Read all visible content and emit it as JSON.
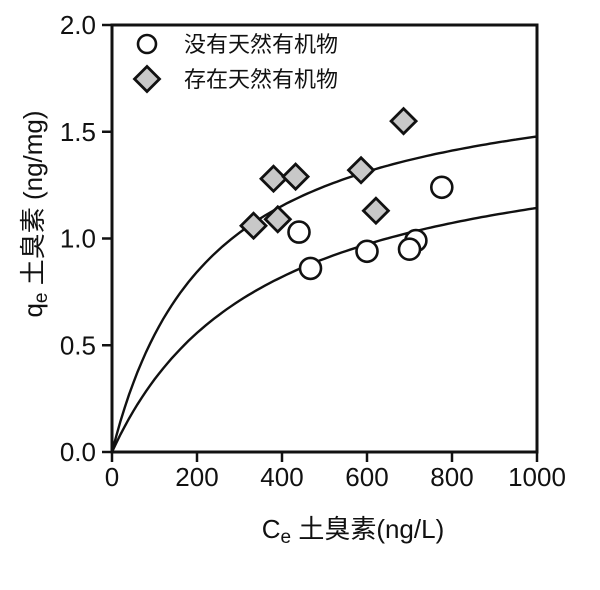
{
  "colors": {
    "line": "#111111",
    "text": "#111111",
    "circle_fill": "#ffffff",
    "diamond_fill": "#c8c8c8",
    "background": "#ffffff"
  },
  "chart_data": {
    "type": "scatter",
    "title": "",
    "xlabel_main": "C",
    "xlabel_sub": "e",
    "xlabel_rest": " 土臭素(ng/L)",
    "ylabel_main": "q",
    "ylabel_sub": "e",
    "ylabel_rest": " 土臭素 (ng/mg)",
    "xlim": [
      0,
      1000
    ],
    "ylim": [
      0,
      2.0
    ],
    "x_ticks": [
      0,
      200,
      400,
      600,
      800,
      1000
    ],
    "x_tick_labels": [
      "0",
      "200",
      "400",
      "600",
      "800",
      "1000"
    ],
    "y_ticks": [
      0,
      0.5,
      1.0,
      1.5,
      2.0
    ],
    "y_tick_labels": [
      "0.0",
      "0.5",
      "1.0",
      "1.5",
      "2.0"
    ],
    "grid": false,
    "legend_position": "top-left",
    "series": [
      {
        "name": "没有天然有机物",
        "marker": "circle",
        "points": [
          [
            440,
            1.03
          ],
          [
            467,
            0.86
          ],
          [
            600,
            0.94
          ],
          [
            715,
            0.99
          ],
          [
            700,
            0.95
          ],
          [
            776,
            1.24
          ]
        ]
      },
      {
        "name": "存在天然有机物",
        "marker": "diamond",
        "points": [
          [
            333,
            1.06
          ],
          [
            390,
            1.09
          ],
          [
            380,
            1.28
          ],
          [
            432,
            1.29
          ],
          [
            586,
            1.32
          ],
          [
            621,
            1.13
          ],
          [
            686,
            1.55
          ]
        ]
      }
    ],
    "fit_curves": [
      {
        "for_series": "没有天然有机物",
        "model": "langmuir q=qmax*K*C/(1+K*C)",
        "qmax": 1.55,
        "K": 0.00281
      },
      {
        "for_series": "存在天然有机物",
        "model": "langmuir q=qmax*K*C/(1+K*C)",
        "qmax": 1.82,
        "K": 0.00432
      }
    ]
  }
}
